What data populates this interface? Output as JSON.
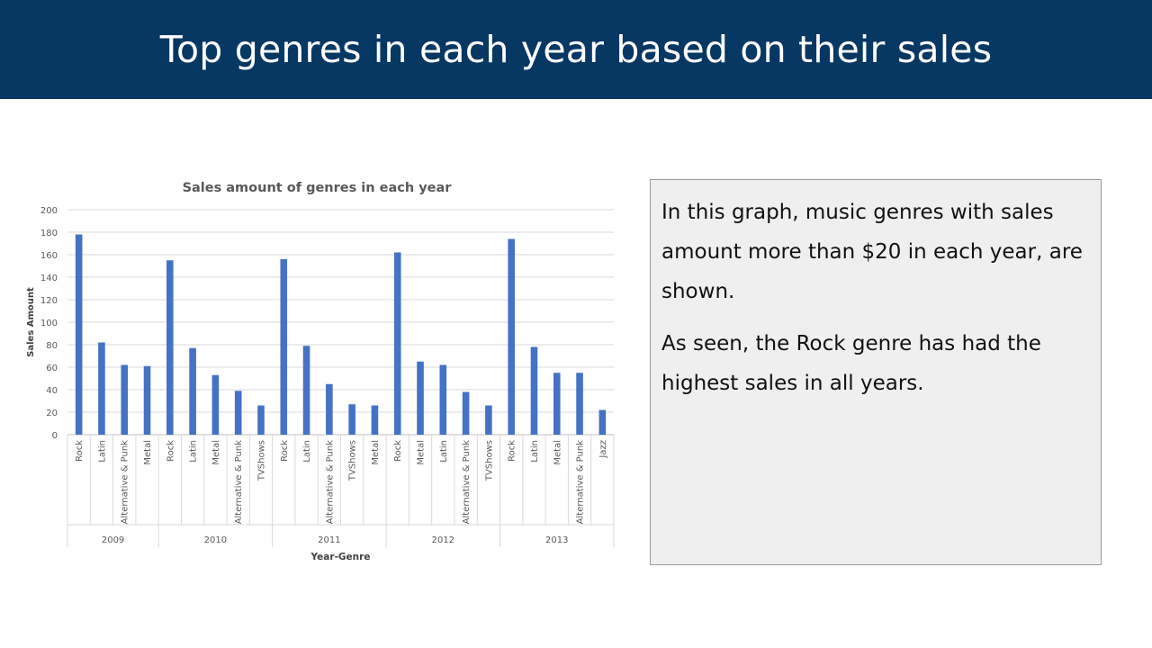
{
  "slide": {
    "title": "Top genres in each year based on their sales"
  },
  "note": {
    "paragraph1": "In this graph, music genres with sales amount more than $20 in each year, are shown.",
    "paragraph2": "As seen, the Rock genre has had the highest sales in all years."
  },
  "chart_data": {
    "type": "bar",
    "title": "Sales amount  of genres in each year",
    "xlabel": "Year-Genre",
    "ylabel": "Sales Amount",
    "ylim": [
      0,
      200
    ],
    "yticks": [
      0,
      20,
      40,
      60,
      80,
      100,
      120,
      140,
      160,
      180,
      200
    ],
    "grid": true,
    "bar_color": "#4472c4",
    "groups": [
      {
        "year": "2009",
        "genres": [
          "Rock",
          "Latin",
          "Alternative & Punk",
          "Metal"
        ],
        "values": [
          178,
          82,
          62,
          61
        ]
      },
      {
        "year": "2010",
        "genres": [
          "Rock",
          "Latin",
          "Metal",
          "Alternative & Punk",
          "TVShows"
        ],
        "values": [
          155,
          77,
          53,
          39,
          26
        ]
      },
      {
        "year": "2011",
        "genres": [
          "Rock",
          "Latin",
          "Alternative & Punk",
          "TVShows",
          "Metal"
        ],
        "values": [
          156,
          79,
          45,
          27,
          26
        ]
      },
      {
        "year": "2012",
        "genres": [
          "Rock",
          "Metal",
          "Latin",
          "Alternative & Punk",
          "TVShows"
        ],
        "values": [
          162,
          65,
          62,
          38,
          26
        ]
      },
      {
        "year": "2013",
        "genres": [
          "Rock",
          "Latin",
          "Metal",
          "Alternative & Punk",
          "Jazz"
        ],
        "values": [
          174,
          78,
          55,
          55,
          22
        ]
      }
    ]
  }
}
